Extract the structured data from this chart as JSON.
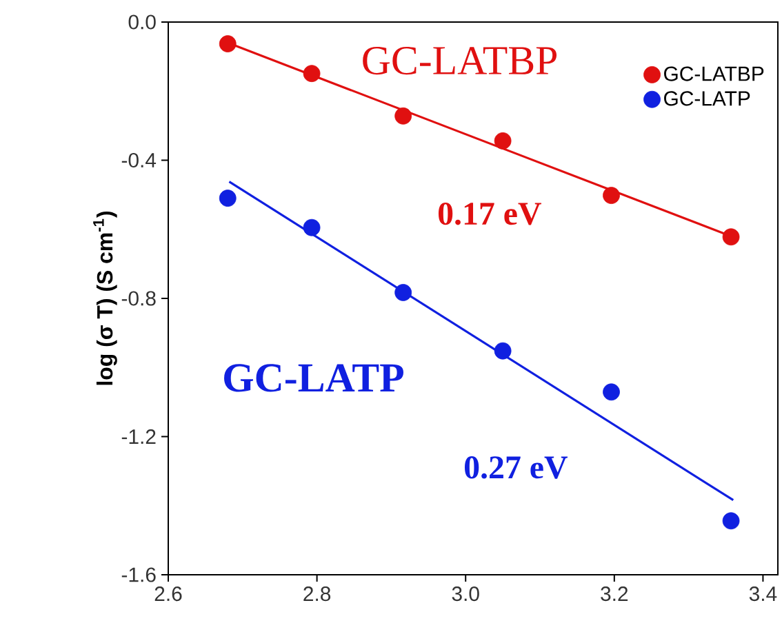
{
  "chart_data": {
    "type": "scatter",
    "ylabel": "log (σ T) (S cm$^{-1}$)",
    "xlim": [
      2.6,
      3.42
    ],
    "ylim": [
      -1.6,
      0.0
    ],
    "xticks": [
      {
        "value": 2.6,
        "label": "2.6"
      },
      {
        "value": 2.8,
        "label": "2.8"
      },
      {
        "value": 3.0,
        "label": "3.0"
      },
      {
        "value": 3.2,
        "label": "3.2"
      },
      {
        "value": 3.4,
        "label": "3.4"
      }
    ],
    "yticks": [
      {
        "value": -1.6,
        "label": "-1.6"
      },
      {
        "value": -1.2,
        "label": "-1.2"
      },
      {
        "value": -0.8,
        "label": "-0.8"
      },
      {
        "value": -0.4,
        "label": "-0.4"
      },
      {
        "value": 0.0,
        "label": "0.0"
      }
    ],
    "series": [
      {
        "name": "GC-LATBP",
        "color": "#e01010",
        "marker": "circle",
        "x": [
          2.68,
          2.793,
          2.916,
          3.05,
          3.196,
          3.357
        ],
        "values": [
          -0.063,
          -0.149,
          -0.272,
          -0.344,
          -0.502,
          -0.622
        ]
      },
      {
        "name": "GC-LATP",
        "color": "#1020e0",
        "marker": "circle",
        "x": [
          2.68,
          2.793,
          2.916,
          3.05,
          3.196,
          3.357
        ],
        "values": [
          -0.51,
          -0.595,
          -0.783,
          -0.952,
          -1.071,
          -1.444
        ]
      },
      {
        "type": "line",
        "color": "#e01010",
        "marker": "none",
        "x": [
          2.68,
          3.357
        ],
        "values": [
          -0.06,
          -0.62
        ]
      },
      {
        "type": "line",
        "color": "#1020e0",
        "marker": "none",
        "x": [
          2.682,
          3.36
        ],
        "values": [
          -0.462,
          -1.384
        ]
      }
    ],
    "annotations": [
      "GC-LATBP",
      "0.17 eV",
      "GC-LATP",
      "0.27 eV"
    ],
    "legend": "top right",
    "grid": false
  }
}
